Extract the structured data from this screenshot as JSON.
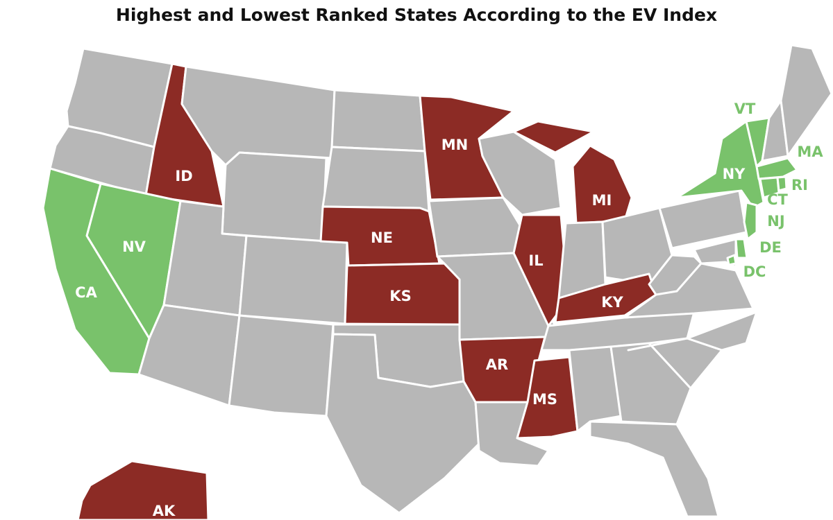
{
  "title": "Highest and Lowest Ranked States According to the EV Index",
  "colors": {
    "highest": "#79c26b",
    "lowest": "#8c2b25",
    "other": "#b7b7b7"
  },
  "labels": {
    "ID": "ID",
    "MN": "MN",
    "NE": "NE",
    "KS": "KS",
    "IL": "IL",
    "MI": "MI",
    "KY": "KY",
    "AR": "AR",
    "MS": "MS",
    "AK": "AK",
    "CA": "CA",
    "NV": "NV",
    "NY": "NY",
    "VT": "VT",
    "MA": "MA",
    "RI": "RI",
    "CT": "CT",
    "NJ": "NJ",
    "DE": "DE",
    "DC": "DC"
  },
  "groups": {
    "highest": [
      "CA",
      "NV",
      "NY",
      "VT",
      "MA",
      "RI",
      "CT",
      "NJ",
      "DE",
      "DC"
    ],
    "lowest": [
      "ID",
      "MN",
      "NE",
      "KS",
      "IL",
      "MI",
      "KY",
      "AR",
      "MS",
      "AK"
    ]
  }
}
